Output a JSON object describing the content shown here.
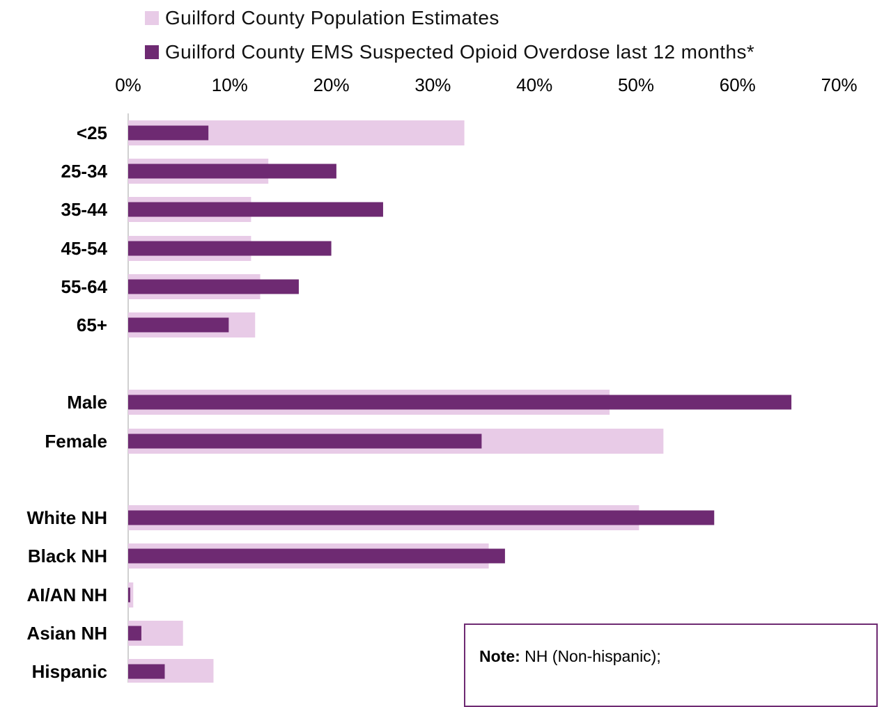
{
  "colors": {
    "population": "#e8cbe7",
    "ems": "#6e2a72",
    "axis": "#d0d0d0"
  },
  "note": {
    "label": "Note:",
    "text": " NH (Non-hispanic);"
  },
  "chart_data": {
    "type": "bar",
    "orientation": "horizontal",
    "title": "",
    "xlabel": "",
    "ylabel": "",
    "xlim": [
      0,
      0.7
    ],
    "x_ticks": [
      "0%",
      "10%",
      "20%",
      "30%",
      "40%",
      "50%",
      "60%",
      "70%"
    ],
    "legend_position": "top",
    "categories": [
      "<25",
      "25-34",
      "35-44",
      "45-54",
      "55-64",
      "65+",
      "Male",
      "Female",
      "White NH",
      "Black NH",
      "AI/AN NH",
      "Asian NH",
      "Hispanic"
    ],
    "series": [
      {
        "name": "Guilford County Population Estimates",
        "values": [
          0.331,
          0.138,
          0.121,
          0.121,
          0.13,
          0.125,
          0.474,
          0.527,
          0.503,
          0.355,
          0.005,
          0.054,
          0.084
        ]
      },
      {
        "name": "Guilford County EMS Suspected Opioid Overdose last 12 months*",
        "values": [
          0.079,
          0.205,
          0.251,
          0.2,
          0.168,
          0.099,
          0.653,
          0.348,
          0.577,
          0.371,
          0.002,
          0.013,
          0.036
        ]
      }
    ]
  }
}
